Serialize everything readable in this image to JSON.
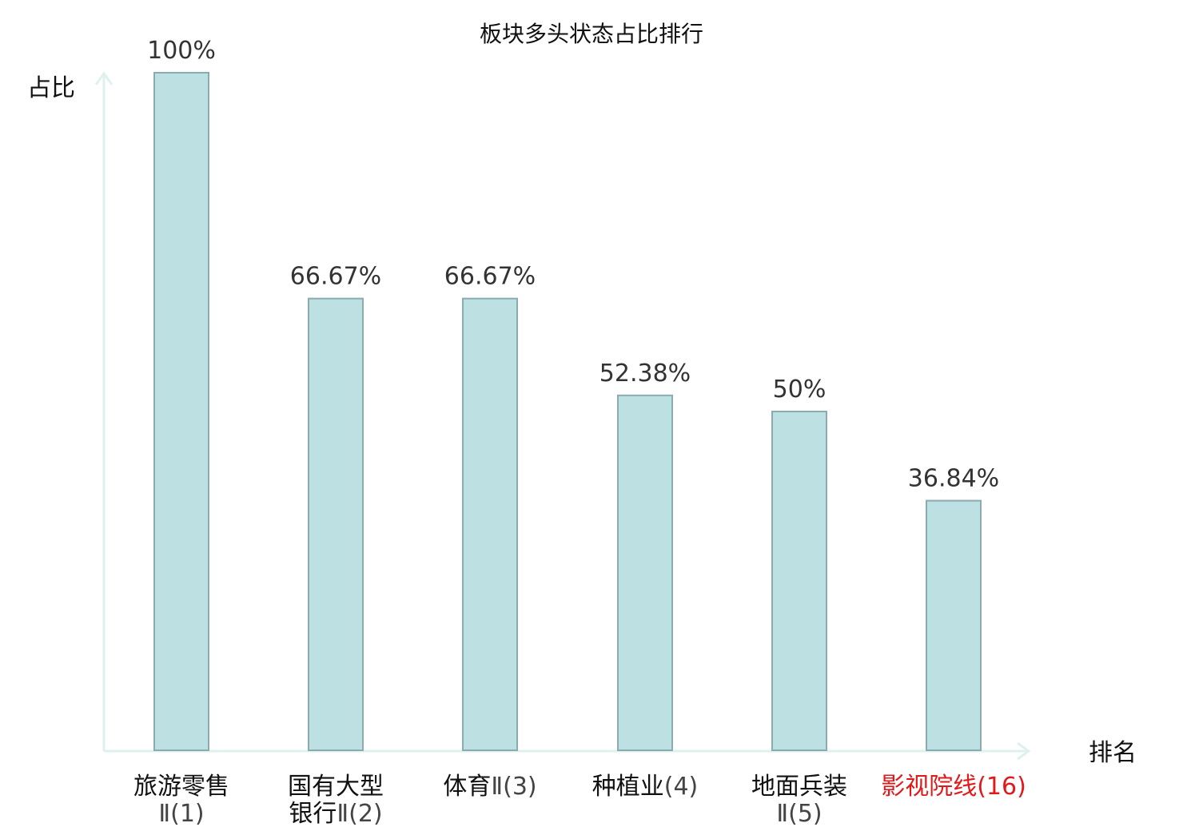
{
  "chart_data": {
    "type": "bar",
    "title": "板块多头状态占比排行",
    "ylabel": "占比",
    "xlabel": "排名",
    "ylim": [
      0,
      100
    ],
    "grid": false,
    "categories": [
      {
        "name": "旅游零售",
        "suffix": "Ⅱ(1)",
        "highlight": false
      },
      {
        "name": "国有大型",
        "name2": "银行",
        "suffix": "Ⅱ(2)",
        "highlight": false
      },
      {
        "name": "体育",
        "suffix": "Ⅱ(3)",
        "highlight": false
      },
      {
        "name": "种植业",
        "suffix": "(4)",
        "highlight": false
      },
      {
        "name": "地面兵装",
        "suffix": "Ⅱ(5)",
        "highlight": false
      },
      {
        "name": "影视院线",
        "suffix": "(16)",
        "highlight": true
      }
    ],
    "values": [
      100,
      66.67,
      66.67,
      52.38,
      50,
      36.84
    ],
    "value_labels": [
      "100%",
      "66.67%",
      "66.67%",
      "52.38%",
      "50%",
      "36.84%"
    ]
  },
  "colors": {
    "bar_fill": "#bde0e3",
    "bar_stroke": "#8aabaf",
    "axis": "#dff1ef",
    "highlight": "#e0191a",
    "normal_text": "#111111",
    "suffix_text": "#444444"
  }
}
